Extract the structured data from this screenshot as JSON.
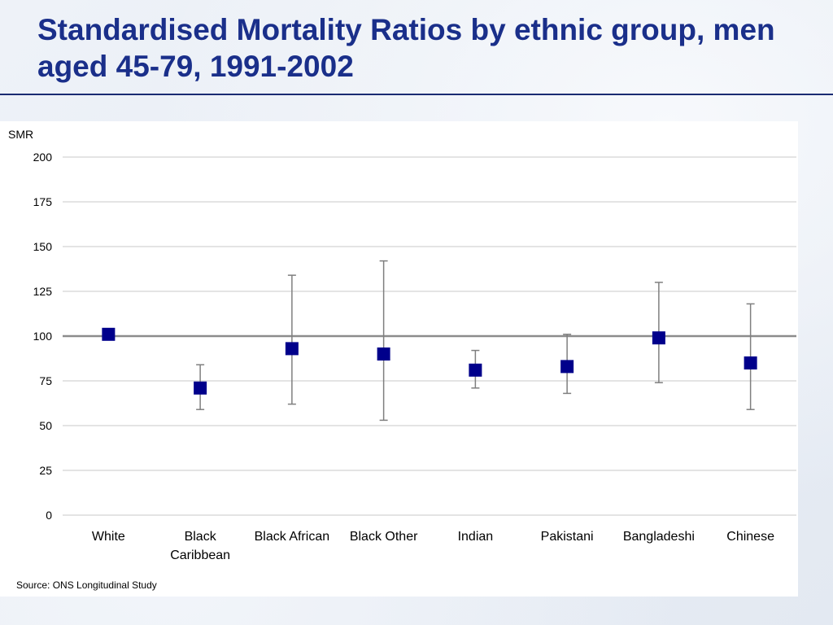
{
  "title": "Standardised Mortality Ratios by ethnic group, men aged 45-79, 1991-2002",
  "source": "Source: ONS Longitudinal Study",
  "colors": {
    "title": "#1a2f8a",
    "marker": "#00008b",
    "error_bar": "#7f7f7f",
    "gridline": "#c8c8c8",
    "reference_line": "#8c8c8c"
  },
  "chart_data": {
    "type": "scatter",
    "ylabel": "SMR",
    "xlabel": "",
    "ylim": [
      0,
      200
    ],
    "yticks": [
      0,
      25,
      50,
      75,
      100,
      125,
      150,
      175,
      200
    ],
    "grid": true,
    "legend": "none",
    "reference_line": 100,
    "marker": "square",
    "categories": [
      [
        "White"
      ],
      [
        "Black",
        "Caribbean"
      ],
      [
        "Black African"
      ],
      [
        "Black Other"
      ],
      [
        "Indian"
      ],
      [
        "Pakistani"
      ],
      [
        "Bangladeshi"
      ],
      [
        "Chinese"
      ]
    ],
    "values": [
      101,
      71,
      93,
      90,
      81,
      83,
      99,
      85
    ],
    "error_low": [
      null,
      59,
      62,
      53,
      71,
      68,
      74,
      59
    ],
    "error_high": [
      null,
      84,
      134,
      142,
      92,
      101,
      130,
      118
    ]
  }
}
